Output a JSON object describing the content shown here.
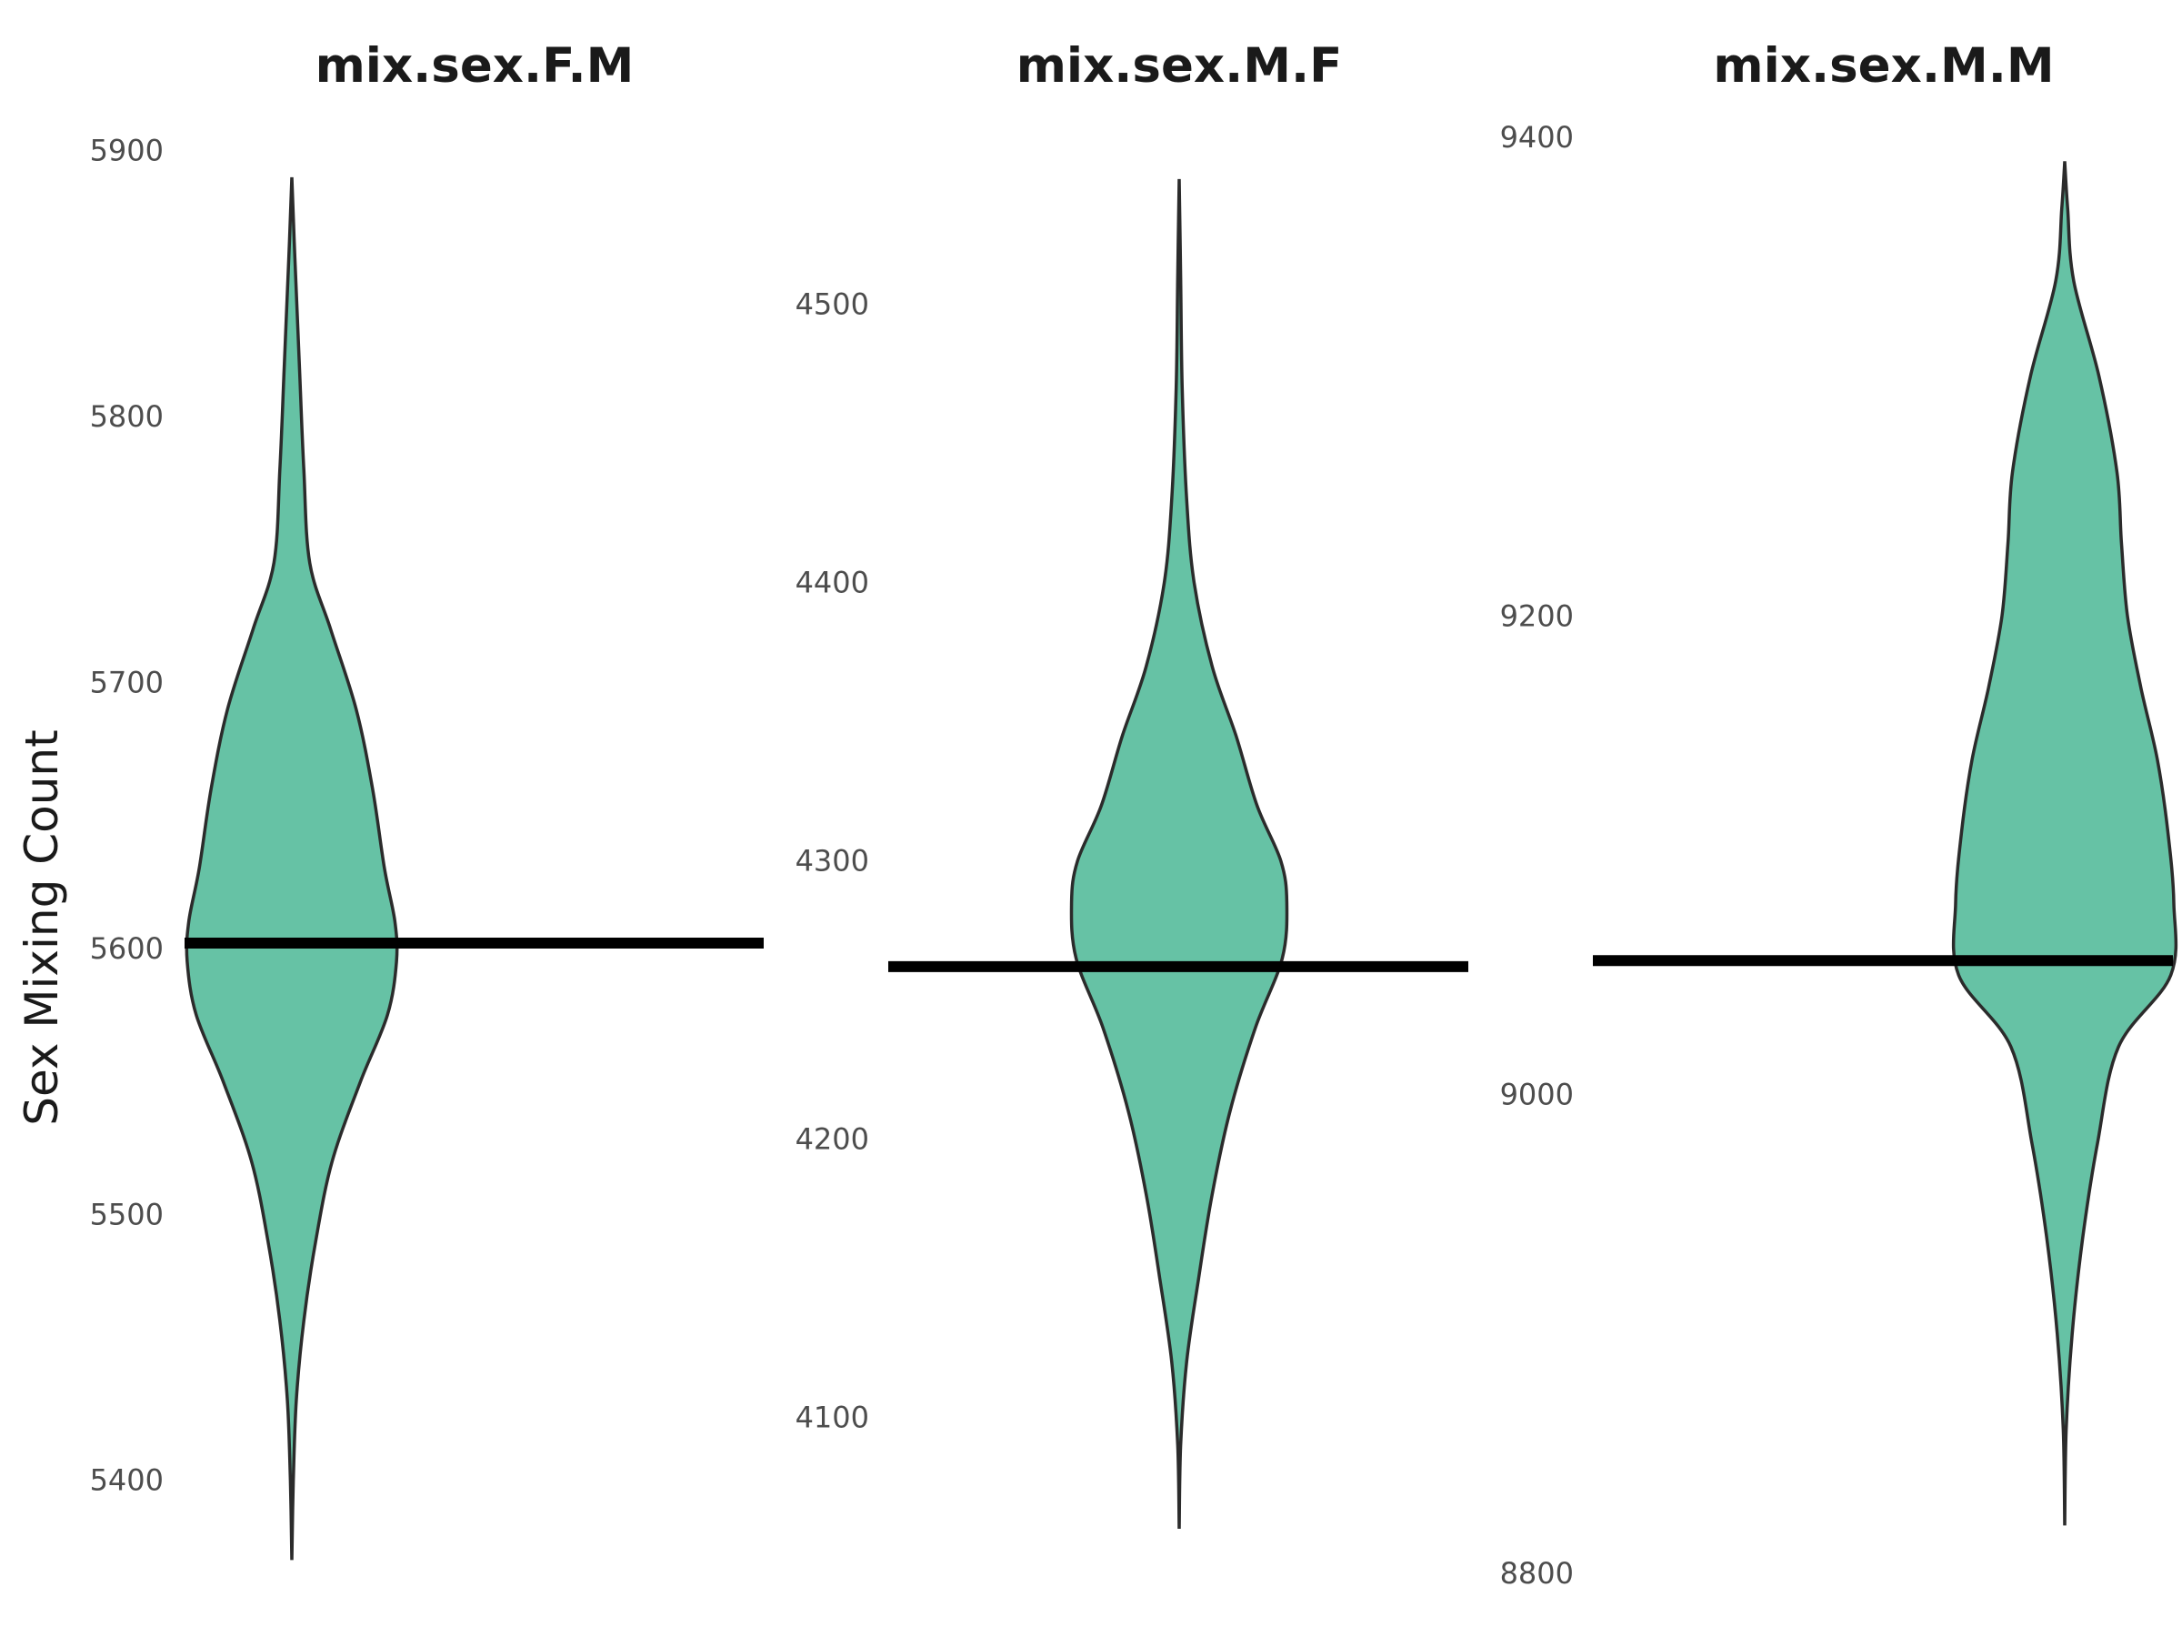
{
  "chart_data": {
    "type": "violin",
    "ylabel": "Sex Mixing Count",
    "fill_color": "#66c2a5",
    "outline_color": "#2b2b2b",
    "observed_line_color": "#000000",
    "grid": false,
    "panels": [
      {
        "title": "mix.sex.F.M",
        "yticks": [
          5400,
          5500,
          5600,
          5700,
          5800,
          5900
        ],
        "ylim": [
          5365,
          5905
        ],
        "observed": 5602,
        "data_range": [
          5370,
          5890
        ],
        "density": [
          {
            "y": 5370,
            "w": 0.0
          },
          {
            "y": 5400,
            "w": 0.01
          },
          {
            "y": 5430,
            "w": 0.03
          },
          {
            "y": 5460,
            "w": 0.08
          },
          {
            "y": 5490,
            "w": 0.16
          },
          {
            "y": 5520,
            "w": 0.27
          },
          {
            "y": 5550,
            "w": 0.46
          },
          {
            "y": 5575,
            "w": 0.64
          },
          {
            "y": 5595,
            "w": 0.7
          },
          {
            "y": 5610,
            "w": 0.69
          },
          {
            "y": 5630,
            "w": 0.62
          },
          {
            "y": 5660,
            "w": 0.54
          },
          {
            "y": 5690,
            "w": 0.43
          },
          {
            "y": 5720,
            "w": 0.26
          },
          {
            "y": 5745,
            "w": 0.12
          },
          {
            "y": 5780,
            "w": 0.08
          },
          {
            "y": 5820,
            "w": 0.05
          },
          {
            "y": 5860,
            "w": 0.02
          },
          {
            "y": 5890,
            "w": 0.0
          }
        ]
      },
      {
        "title": "mix.sex.M.F",
        "yticks": [
          4100,
          4200,
          4300,
          4400,
          4500
        ],
        "ylim": [
          4044,
          4560
        ],
        "observed": 4262,
        "data_range": [
          4060,
          4545
        ],
        "density": [
          {
            "y": 4060,
            "w": 0.0
          },
          {
            "y": 4090,
            "w": 0.01
          },
          {
            "y": 4120,
            "w": 0.05
          },
          {
            "y": 4150,
            "w": 0.13
          },
          {
            "y": 4180,
            "w": 0.22
          },
          {
            "y": 4210,
            "w": 0.34
          },
          {
            "y": 4240,
            "w": 0.51
          },
          {
            "y": 4265,
            "w": 0.69
          },
          {
            "y": 4285,
            "w": 0.72
          },
          {
            "y": 4300,
            "w": 0.68
          },
          {
            "y": 4320,
            "w": 0.52
          },
          {
            "y": 4345,
            "w": 0.38
          },
          {
            "y": 4370,
            "w": 0.22
          },
          {
            "y": 4400,
            "w": 0.1
          },
          {
            "y": 4430,
            "w": 0.05
          },
          {
            "y": 4470,
            "w": 0.02
          },
          {
            "y": 4510,
            "w": 0.01
          },
          {
            "y": 4545,
            "w": 0.0
          }
        ]
      },
      {
        "title": "mix.sex.M.M",
        "yticks": [
          8800,
          9000,
          9200,
          9400
        ],
        "ylim": [
          8800,
          9400
        ],
        "observed": 9056,
        "data_range": [
          8820,
          9390
        ],
        "density": [
          {
            "y": 8820,
            "w": 0.0
          },
          {
            "y": 8860,
            "w": 0.01
          },
          {
            "y": 8900,
            "w": 0.05
          },
          {
            "y": 8940,
            "w": 0.12
          },
          {
            "y": 8980,
            "w": 0.22
          },
          {
            "y": 9020,
            "w": 0.36
          },
          {
            "y": 9050,
            "w": 0.71
          },
          {
            "y": 9080,
            "w": 0.73
          },
          {
            "y": 9110,
            "w": 0.69
          },
          {
            "y": 9140,
            "w": 0.62
          },
          {
            "y": 9170,
            "w": 0.51
          },
          {
            "y": 9200,
            "w": 0.42
          },
          {
            "y": 9230,
            "w": 0.38
          },
          {
            "y": 9260,
            "w": 0.35
          },
          {
            "y": 9300,
            "w": 0.23
          },
          {
            "y": 9340,
            "w": 0.06
          },
          {
            "y": 9370,
            "w": 0.02
          },
          {
            "y": 9390,
            "w": 0.0
          }
        ]
      }
    ]
  }
}
